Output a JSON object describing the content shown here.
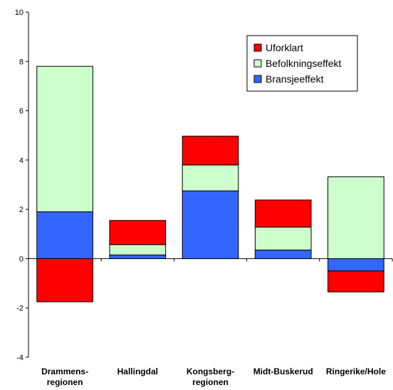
{
  "chart_data": {
    "type": "bar",
    "stacked": true,
    "categories": [
      [
        "Drammens-",
        "regionen"
      ],
      [
        "Hallingdal"
      ],
      [
        "Kongsberg-",
        "regionen"
      ],
      [
        "Midt-Buskerud"
      ],
      [
        "Ringerike/Hole"
      ]
    ],
    "series": [
      {
        "name": "Bransjeeffekt",
        "color": "#3366ff",
        "values": [
          1.9,
          0.15,
          2.75,
          0.35,
          -0.5
        ]
      },
      {
        "name": "Befolkningseffekt",
        "color": "#ccffcc",
        "values": [
          5.9,
          0.42,
          1.05,
          0.93,
          3.32
        ]
      },
      {
        "name": "Uforklart",
        "color": "#ff0000",
        "values": [
          -1.75,
          0.98,
          1.17,
          1.1,
          -0.85
        ]
      }
    ],
    "legend_order": [
      "Uforklart",
      "Befolkningseffekt",
      "Bransjeeffekt"
    ],
    "legend_position": "top-right",
    "ylim": [
      -4,
      10
    ],
    "yticks": [
      "-4",
      "-2",
      "0",
      "2",
      "4",
      "6",
      "8",
      "10"
    ],
    "grid": false
  }
}
